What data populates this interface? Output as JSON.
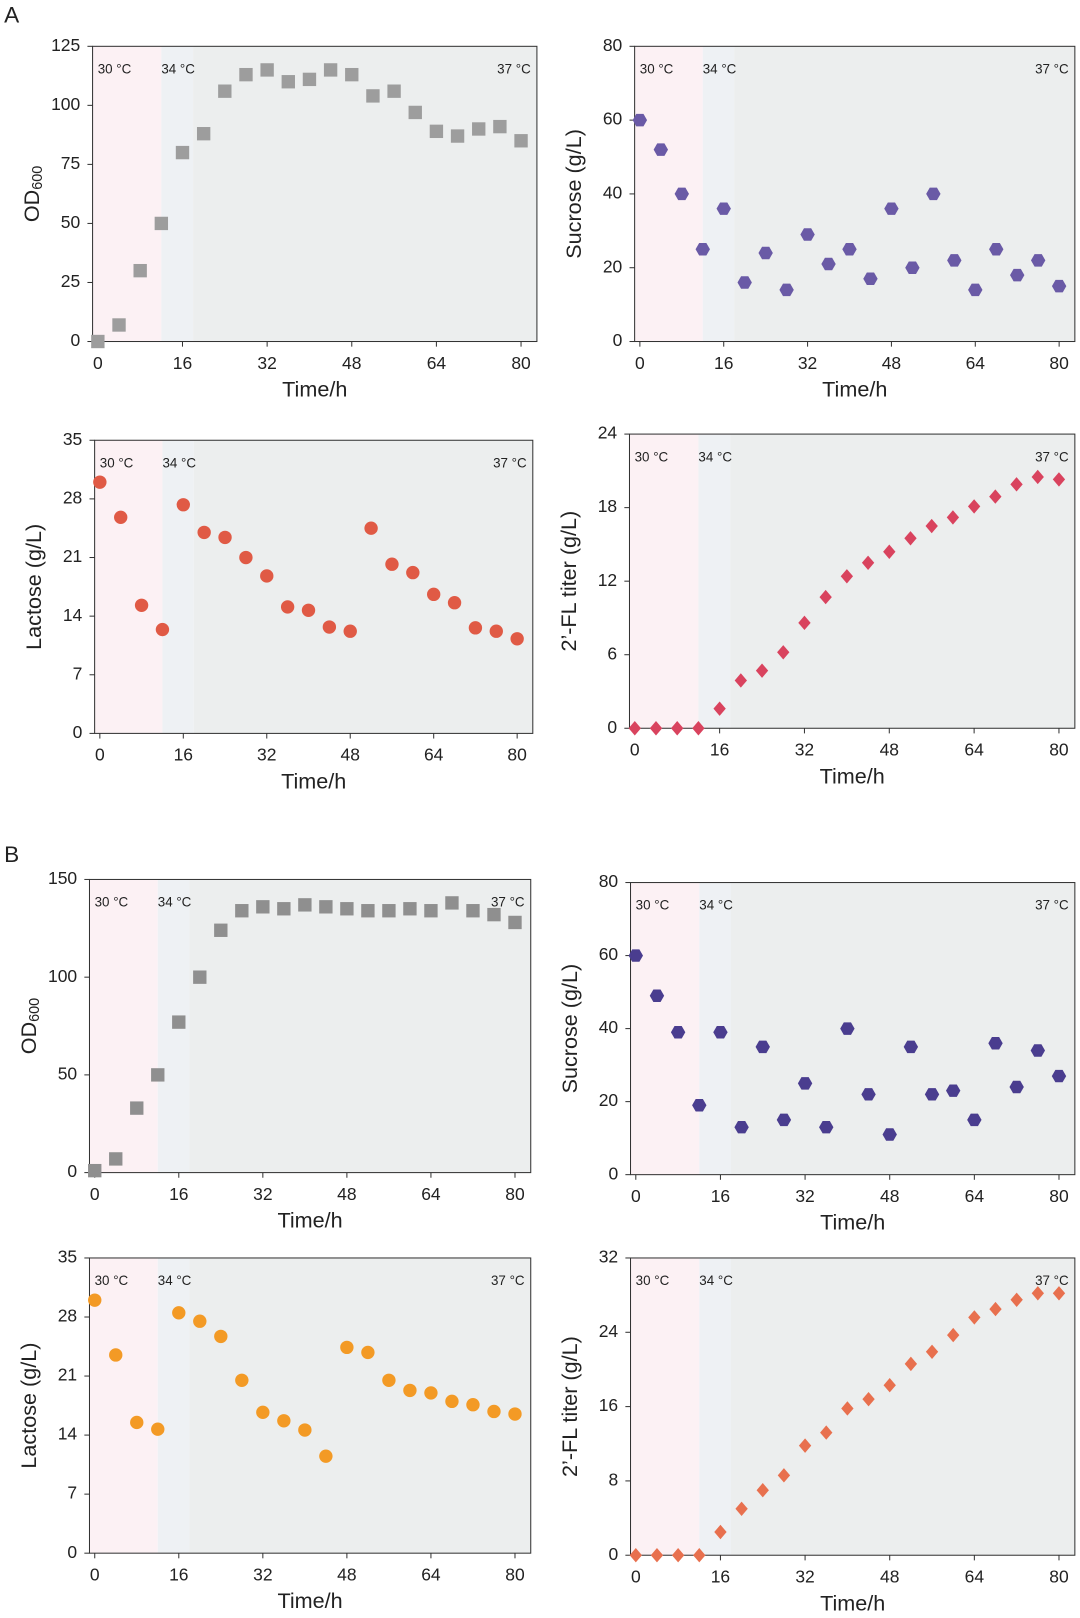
{
  "panel_labels": [
    "A",
    "B"
  ],
  "chart_data": [
    {
      "type": "scatter",
      "marker": "square",
      "color": "#9d9d9d",
      "y_label": "OD",
      "y_label_subscript": "600",
      "x_label": "Time/h",
      "annotations": [
        "30 °C",
        "34 °C",
        "37 °C"
      ],
      "bands": [
        {
          "from": -1,
          "to": 12,
          "color": "#fcf1f4"
        },
        {
          "from": 12,
          "to": 18,
          "color": "#eef1f4"
        },
        {
          "from": 18,
          "to": 83,
          "color": "#eceeee"
        }
      ],
      "x": [
        0,
        4,
        8,
        12,
        16,
        20,
        24,
        28,
        32,
        36,
        40,
        44,
        48,
        52,
        56,
        60,
        64,
        68,
        72,
        76,
        80
      ],
      "values": [
        0,
        7,
        30,
        50,
        80,
        88,
        106,
        113,
        115,
        110,
        111,
        115,
        113,
        104,
        106,
        97,
        89,
        87,
        90,
        91,
        85
      ],
      "xlim": [
        -1,
        83
      ],
      "xticks": [
        0,
        16,
        32,
        48,
        64,
        80
      ],
      "ylim": [
        0,
        125
      ],
      "yticks": [
        0,
        25,
        50,
        75,
        100,
        125
      ]
    },
    {
      "type": "scatter",
      "marker": "hexagon",
      "color": "#6a5aa6",
      "y_label": "Sucrose (g/L)",
      "x_label": "Time/h",
      "annotations": [
        "30 °C",
        "34 °C",
        "37 °C"
      ],
      "bands": [
        {
          "from": -1,
          "to": 12,
          "color": "#fcf1f4"
        },
        {
          "from": 12,
          "to": 18,
          "color": "#eef1f4"
        },
        {
          "from": 18,
          "to": 83,
          "color": "#eceeee"
        }
      ],
      "x": [
        0,
        4,
        8,
        12,
        16,
        20,
        24,
        28,
        32,
        36,
        40,
        44,
        48,
        52,
        56,
        60,
        64,
        68,
        72,
        76,
        80
      ],
      "values": [
        60,
        52,
        40,
        25,
        36,
        16,
        24,
        14,
        29,
        21,
        25,
        17,
        36,
        20,
        40,
        22,
        14,
        25,
        18,
        22,
        15
      ],
      "xlim": [
        -1,
        83
      ],
      "xticks": [
        0,
        16,
        32,
        48,
        64,
        80
      ],
      "ylim": [
        0,
        80
      ],
      "yticks": [
        0,
        20,
        40,
        60,
        80
      ]
    },
    {
      "type": "scatter",
      "marker": "circle",
      "color": "#e05a45",
      "y_label": "Lactose  (g/L)",
      "x_label": "Time/h",
      "annotations": [
        "30 °C",
        "34 °C",
        "37 °C"
      ],
      "bands": [
        {
          "from": -1,
          "to": 12,
          "color": "#fcf1f4"
        },
        {
          "from": 12,
          "to": 18,
          "color": "#eef1f4"
        },
        {
          "from": 18,
          "to": 83,
          "color": "#eceeee"
        }
      ],
      "x": [
        0,
        4,
        8,
        12,
        16,
        20,
        24,
        28,
        32,
        36,
        40,
        44,
        48,
        52,
        56,
        60,
        64,
        68,
        72,
        76,
        80
      ],
      "values": [
        30,
        25.8,
        15.3,
        12.4,
        27.3,
        24,
        23.4,
        21,
        18.8,
        15.1,
        14.7,
        12.7,
        12.2,
        24.5,
        20.2,
        19.2,
        16.6,
        15.6,
        12.6,
        12.2,
        11.3
      ],
      "xlim": [
        -1,
        83
      ],
      "xticks": [
        0,
        16,
        32,
        48,
        64,
        80
      ],
      "ylim": [
        0,
        35
      ],
      "yticks": [
        0,
        7,
        14,
        21,
        28,
        35
      ]
    },
    {
      "type": "scatter",
      "marker": "diamond",
      "color": "#d9435e",
      "y_label": "2’-FL titer  (g/L)",
      "x_label": "Time/h",
      "annotations": [
        "30 °C",
        "34 °C",
        "37 °C"
      ],
      "bands": [
        {
          "from": -1,
          "to": 12,
          "color": "#fcf1f4"
        },
        {
          "from": 12,
          "to": 18,
          "color": "#eef1f4"
        },
        {
          "from": 18,
          "to": 83,
          "color": "#eceeee"
        }
      ],
      "x": [
        0,
        4,
        8,
        12,
        16,
        20,
        24,
        28,
        32,
        36,
        40,
        44,
        48,
        52,
        56,
        60,
        64,
        68,
        72,
        76,
        80
      ],
      "values": [
        0,
        0,
        0,
        0,
        1.6,
        3.9,
        4.7,
        6.2,
        8.6,
        10.7,
        12.4,
        13.5,
        14.4,
        15.5,
        16.5,
        17.2,
        18.1,
        18.9,
        19.9,
        20.5,
        20.3
      ],
      "xlim": [
        -1,
        83
      ],
      "xticks": [
        0,
        16,
        32,
        48,
        64,
        80
      ],
      "ylim": [
        0,
        24
      ],
      "yticks": [
        0,
        6,
        12,
        18,
        24
      ]
    },
    {
      "type": "scatter",
      "marker": "square",
      "color": "#8f8f8f",
      "y_label": "OD",
      "y_label_subscript": "600",
      "x_label": "Time/h",
      "annotations": [
        "30 °C",
        "34 °C",
        "37 °C"
      ],
      "bands": [
        {
          "from": -1,
          "to": 12,
          "color": "#fcf1f4"
        },
        {
          "from": 12,
          "to": 18,
          "color": "#eef1f4"
        },
        {
          "from": 18,
          "to": 83,
          "color": "#eceeee"
        }
      ],
      "x": [
        0,
        4,
        8,
        12,
        16,
        20,
        24,
        28,
        32,
        36,
        40,
        44,
        48,
        52,
        56,
        60,
        64,
        68,
        72,
        76,
        80
      ],
      "values": [
        1,
        7,
        33,
        50,
        77,
        100,
        124,
        134,
        136,
        135,
        137,
        136,
        135,
        134,
        134,
        135,
        134,
        138,
        134,
        132,
        128
      ],
      "xlim": [
        -1,
        83
      ],
      "xticks": [
        0,
        16,
        32,
        48,
        64,
        80
      ],
      "ylim": [
        0,
        150
      ],
      "yticks": [
        0,
        50,
        100,
        150
      ]
    },
    {
      "type": "scatter",
      "marker": "hexagon",
      "color": "#4a3d8f",
      "y_label": "Sucrose (g/L)",
      "x_label": "Time/h",
      "annotations": [
        "30 °C",
        "34 °C",
        "37 °C"
      ],
      "bands": [
        {
          "from": -1,
          "to": 12,
          "color": "#fcf1f4"
        },
        {
          "from": 12,
          "to": 18,
          "color": "#eef1f4"
        },
        {
          "from": 18,
          "to": 83,
          "color": "#eceeee"
        }
      ],
      "x": [
        0,
        4,
        8,
        12,
        16,
        20,
        24,
        28,
        32,
        36,
        40,
        44,
        48,
        52,
        56,
        60,
        64,
        68,
        72,
        76,
        80
      ],
      "values": [
        60,
        49,
        39,
        19,
        39,
        13,
        35,
        15,
        25,
        13,
        40,
        22,
        11,
        35,
        22,
        23,
        15,
        36,
        24,
        34,
        27
      ],
      "xlim": [
        -1,
        83
      ],
      "xticks": [
        0,
        16,
        32,
        48,
        64,
        80
      ],
      "ylim": [
        0,
        80
      ],
      "yticks": [
        0,
        20,
        40,
        60,
        80
      ]
    },
    {
      "type": "scatter",
      "marker": "circle",
      "color": "#f39a25",
      "y_label": "Lactose (g/L)",
      "x_label": "Time/h",
      "annotations": [
        "30 °C",
        "34 °C",
        "37 °C"
      ],
      "bands": [
        {
          "from": -1,
          "to": 12,
          "color": "#fcf1f4"
        },
        {
          "from": 12,
          "to": 18,
          "color": "#eef1f4"
        },
        {
          "from": 18,
          "to": 83,
          "color": "#eceeee"
        }
      ],
      "x": [
        0,
        4,
        8,
        12,
        16,
        20,
        24,
        28,
        32,
        36,
        40,
        44,
        48,
        52,
        56,
        60,
        64,
        68,
        72,
        76,
        80
      ],
      "values": [
        30,
        23.5,
        15.5,
        14.7,
        28.5,
        27.5,
        25.7,
        20.5,
        16.7,
        15.7,
        14.6,
        11.5,
        24.4,
        23.8,
        20.5,
        19.3,
        19,
        18,
        17.6,
        16.8,
        16.5
      ],
      "xlim": [
        -1,
        83
      ],
      "xticks": [
        0,
        16,
        32,
        48,
        64,
        80
      ],
      "ylim": [
        0,
        35
      ],
      "yticks": [
        0,
        7,
        14,
        21,
        28,
        35
      ]
    },
    {
      "type": "scatter",
      "marker": "diamond",
      "color": "#e8704e",
      "y_label": "2’-FL titer (g/L)",
      "x_label": "Time/h",
      "annotations": [
        "30 °C",
        "34 °C",
        "37 °C"
      ],
      "bands": [
        {
          "from": -1,
          "to": 12,
          "color": "#fcf1f4"
        },
        {
          "from": 12,
          "to": 18,
          "color": "#eef1f4"
        },
        {
          "from": 18,
          "to": 83,
          "color": "#eceeee"
        }
      ],
      "x": [
        0,
        4,
        8,
        12,
        16,
        20,
        24,
        28,
        32,
        36,
        40,
        44,
        48,
        52,
        56,
        60,
        64,
        68,
        72,
        76,
        80
      ],
      "values": [
        0,
        0,
        0,
        0,
        2.5,
        5,
        7,
        8.6,
        11.8,
        13.2,
        15.8,
        16.8,
        18.3,
        20.6,
        21.9,
        23.7,
        25.6,
        26.5,
        27.5,
        28.2,
        28.2
      ],
      "xlim": [
        -1,
        83
      ],
      "xticks": [
        0,
        16,
        32,
        48,
        64,
        80
      ],
      "ylim": [
        0,
        32
      ],
      "yticks": [
        0,
        8,
        16,
        24,
        32
      ]
    }
  ]
}
